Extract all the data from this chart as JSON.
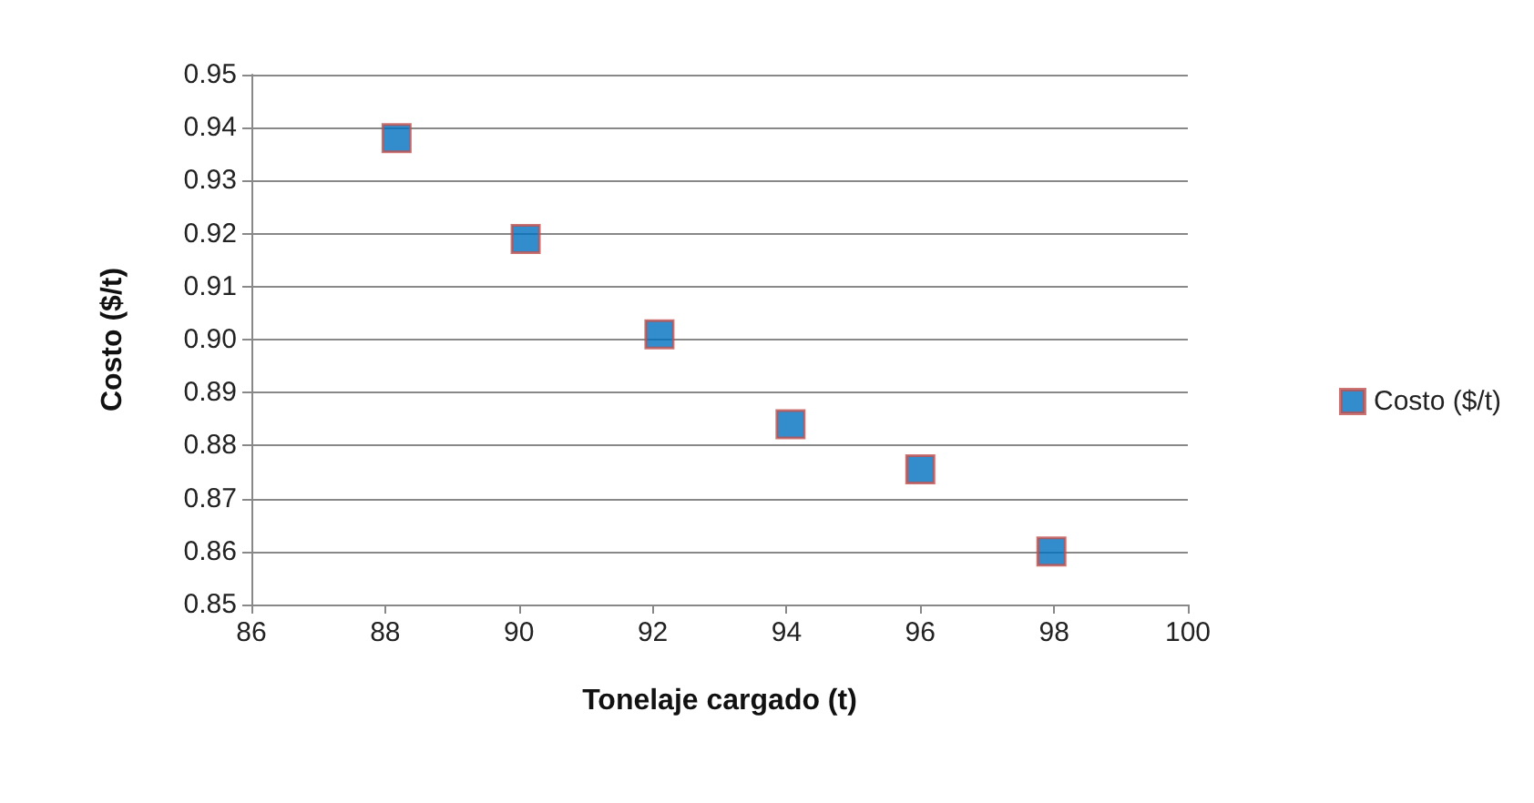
{
  "chart_data": {
    "type": "scatter",
    "xlabel": "Tonelaje cargado (t)",
    "ylabel": "Costo ($/t)",
    "x": [
      88.17,
      90.1,
      92.1,
      94.06,
      96.0,
      97.96
    ],
    "series": [
      {
        "name": "Costo ($/t)",
        "color": "#0070c0",
        "values": [
          0.938,
          0.919,
          0.901,
          0.884,
          0.8755,
          0.86
        ]
      }
    ],
    "xlim": [
      86,
      100
    ],
    "xticks": [
      86,
      88,
      90,
      92,
      94,
      96,
      98,
      100
    ],
    "ylim": [
      0.85,
      0.95
    ],
    "yticks": [
      0.85,
      0.86,
      0.87,
      0.88,
      0.89,
      {
        "value": 0.9,
        "label": "0.90"
      },
      0.91,
      0.92,
      0.93,
      0.94,
      0.95
    ],
    "grid": "y",
    "legend": "right",
    "marker": "square"
  }
}
